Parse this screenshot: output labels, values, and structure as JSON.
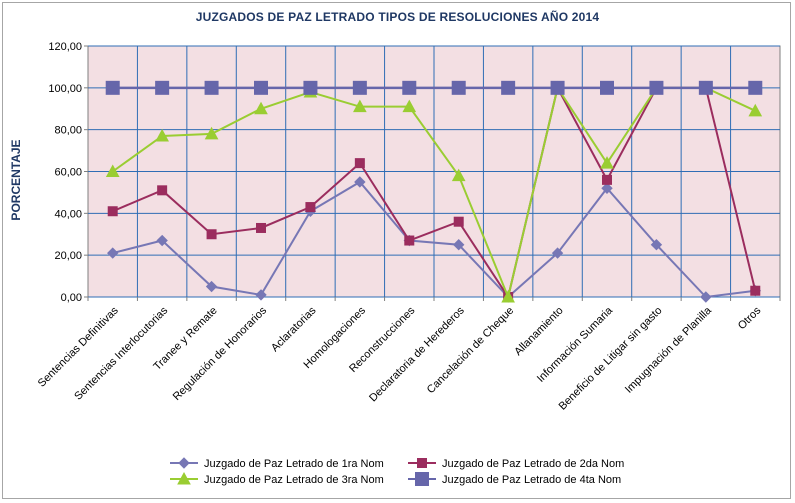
{
  "chart_data": {
    "type": "line",
    "title": "JUZGADOS DE PAZ LETRADO TIPOS DE RESOLUCIONES AÑO 2014",
    "xlabel": "",
    "ylabel": "PORCENTAJE",
    "ylim": [
      0,
      120
    ],
    "yticks": [
      "0,00",
      "20,00",
      "40,00",
      "60,00",
      "80,00",
      "100,00",
      "120,00"
    ],
    "grid": true,
    "legend_position": "bottom",
    "plot_background": "#f3dfe3",
    "grid_color": "#2f6db5",
    "categories": [
      "Sentencias Definitivas",
      "Sentencias Interlocutorias",
      "Tranee y Remate",
      "Regulación de Honorarios",
      "Aclaratorias",
      "Homologaciones",
      "Reconstrucciones",
      "Declaratoria de Herederos",
      "Cancelación de Cheque",
      "Allanamiento",
      "Información Sumaria",
      "Beneficio de Litigar sin gasto",
      "Impugnación de Planilla",
      "Otros"
    ],
    "series": [
      {
        "name": "Juzgado de Paz Letrado de 1ra Nom",
        "color": "#7777b5",
        "marker": "diamond",
        "values": [
          21,
          27,
          5,
          1,
          41,
          55,
          27,
          25,
          0,
          21,
          52,
          25,
          0,
          3
        ]
      },
      {
        "name": "Juzgado de Paz Letrado de 2da Nom",
        "color": "#9b2d5e",
        "marker": "square",
        "values": [
          41,
          51,
          30,
          33,
          43,
          64,
          27,
          36,
          0,
          100,
          56,
          100,
          100,
          3
        ]
      },
      {
        "name": "Juzgado de Paz Letrado de 3ra Nom",
        "color": "#9acd32",
        "marker": "triangle",
        "values": [
          60,
          77,
          78,
          90,
          98,
          91,
          91,
          58,
          0,
          100,
          64,
          100,
          100,
          89
        ]
      },
      {
        "name": "Juzgado de Paz Letrado de 4ta Nom",
        "color": "#6666aa",
        "marker": "bigsquare",
        "values": [
          100,
          100,
          100,
          100,
          100,
          100,
          100,
          100,
          100,
          100,
          100,
          100,
          100,
          100
        ]
      }
    ]
  }
}
